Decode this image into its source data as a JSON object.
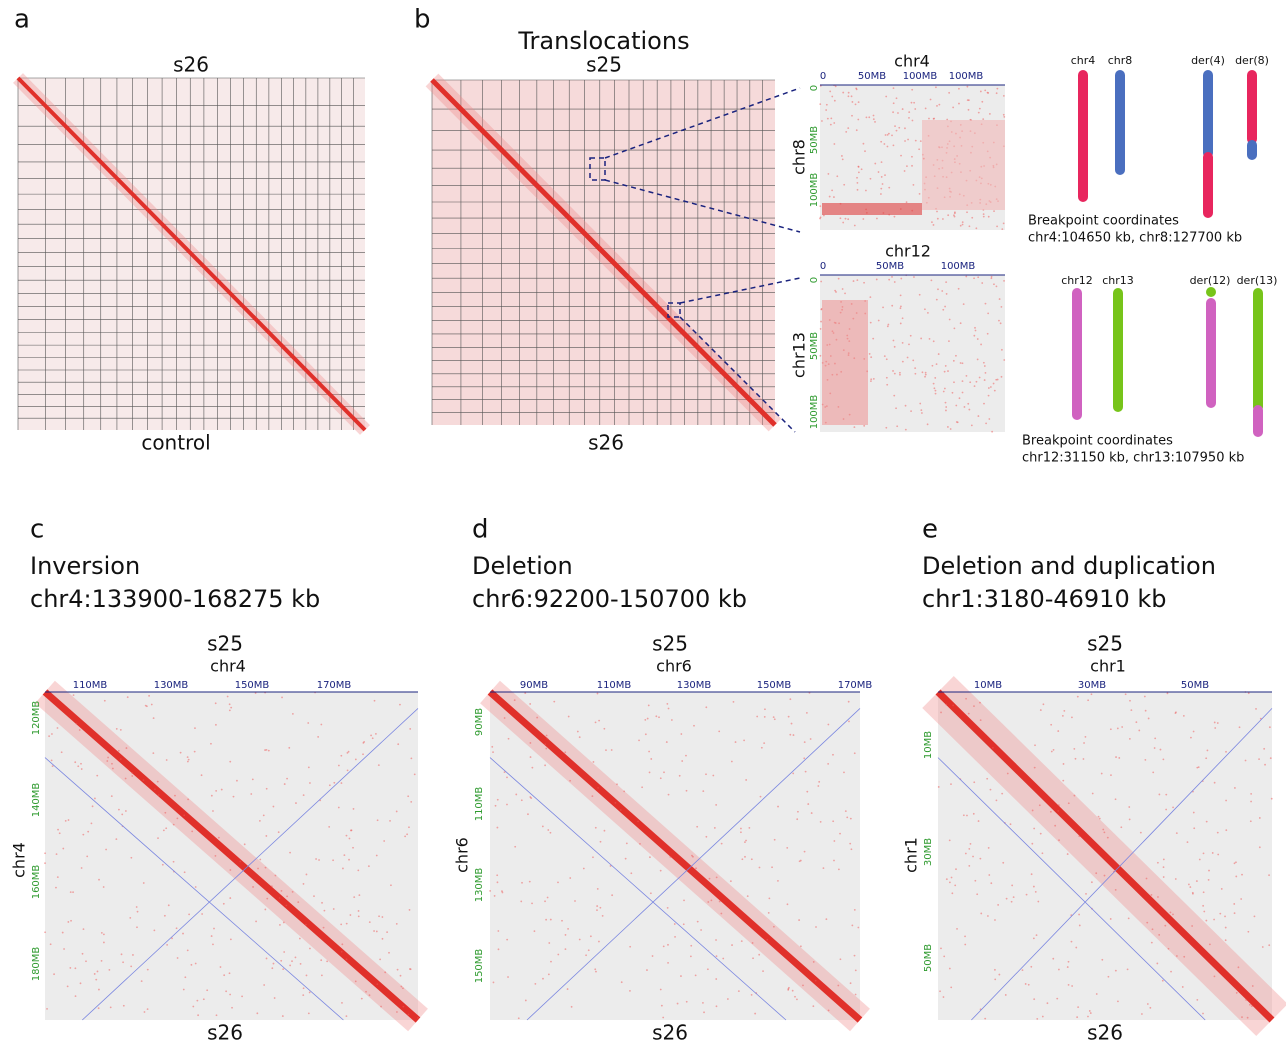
{
  "panels": {
    "a": {
      "letter": "a",
      "top": "s26",
      "bottom": "control"
    },
    "b": {
      "letter": "b",
      "title": "Translocations",
      "top": "s25",
      "bottom": "s26",
      "zoom1": {
        "x_label": "chr4",
        "x_ticks": [
          "0",
          "50MB",
          "100MB",
          "100MB"
        ],
        "y_label": "chr8",
        "y_ticks": [
          "0",
          "50MB",
          "100MB"
        ]
      },
      "zoom2": {
        "x_label": "chr12",
        "x_ticks": [
          "0",
          "50MB",
          "100MB"
        ],
        "y_label": "chr13",
        "y_ticks": [
          "0",
          "50MB",
          "100MB"
        ]
      },
      "ideogram1": {
        "labels": [
          "chr4",
          "chr8",
          "der(4)",
          "der(8)"
        ],
        "note": "Breakpoint coordinates",
        "coords": "chr4:104650 kb, chr8:127700 kb"
      },
      "ideogram2": {
        "labels": [
          "chr12",
          "chr13",
          "der(12)",
          "der(13)"
        ],
        "note": "Breakpoint coordinates",
        "coords": "chr12:31150 kb, chr13:107950 kb"
      }
    },
    "c": {
      "letter": "c",
      "title": "Inversion",
      "region": "chr4:133900-168275 kb",
      "top": "s25",
      "x_label": "chr4",
      "x_ticks": [
        "110MB",
        "130MB",
        "150MB",
        "170MB"
      ],
      "y_label": "chr4",
      "y_ticks": [
        "120MB",
        "140MB",
        "160MB",
        "180MB"
      ],
      "bottom": "s26"
    },
    "d": {
      "letter": "d",
      "title": "Deletion",
      "region": "chr6:92200-150700 kb",
      "top": "s25",
      "x_label": "chr6",
      "x_ticks": [
        "90MB",
        "110MB",
        "130MB",
        "150MB",
        "170MB"
      ],
      "y_label": "chr6",
      "y_ticks": [
        "90MB",
        "110MB",
        "130MB",
        "150MB"
      ],
      "bottom": "s26"
    },
    "e": {
      "letter": "e",
      "title": "Deletion and duplication",
      "region": "chr1:3180-46910 kb",
      "top": "s25",
      "x_label": "chr1",
      "x_ticks": [
        "10MB",
        "30MB",
        "50MB"
      ],
      "y_label": "chr1",
      "y_ticks": [
        "10MB",
        "30MB",
        "50MB"
      ],
      "bottom": "s26"
    }
  }
}
